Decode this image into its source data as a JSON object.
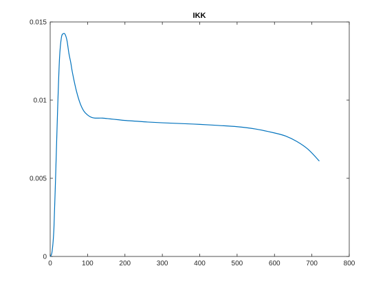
{
  "chart_data": {
    "type": "line",
    "title": "IKK",
    "xlabel": "",
    "ylabel": "",
    "xlim": [
      0,
      800
    ],
    "ylim": [
      0,
      0.015
    ],
    "xticks": [
      0,
      100,
      200,
      300,
      400,
      500,
      600,
      700,
      800
    ],
    "xtick_labels": [
      "0",
      "100",
      "200",
      "300",
      "400",
      "500",
      "600",
      "700",
      "800"
    ],
    "yticks": [
      0,
      0.005,
      0.01,
      0.015
    ],
    "ytick_labels": [
      "0",
      "0.005",
      "0.01",
      "0.015"
    ],
    "grid": false,
    "line_color": "#0072BD",
    "series": [
      {
        "x": [
          0,
          5,
          10,
          15,
          20,
          25,
          30,
          35,
          40,
          45,
          50,
          55,
          60,
          70,
          80,
          90,
          100,
          110,
          120,
          140,
          160,
          180,
          200,
          230,
          260,
          300,
          350,
          400,
          450,
          500,
          550,
          600,
          630,
          660,
          690,
          720
        ],
        "y": [
          0,
          0.0003,
          0.0018,
          0.0055,
          0.0095,
          0.0127,
          0.014,
          0.01425,
          0.0142,
          0.0138,
          0.013,
          0.0124,
          0.0117,
          0.0106,
          0.0098,
          0.0093,
          0.00905,
          0.0089,
          0.00885,
          0.00885,
          0.0088,
          0.00875,
          0.0087,
          0.00865,
          0.0086,
          0.00855,
          0.0085,
          0.00845,
          0.00838,
          0.0083,
          0.00815,
          0.0079,
          0.0077,
          0.00735,
          0.00685,
          0.0061
        ]
      }
    ]
  }
}
